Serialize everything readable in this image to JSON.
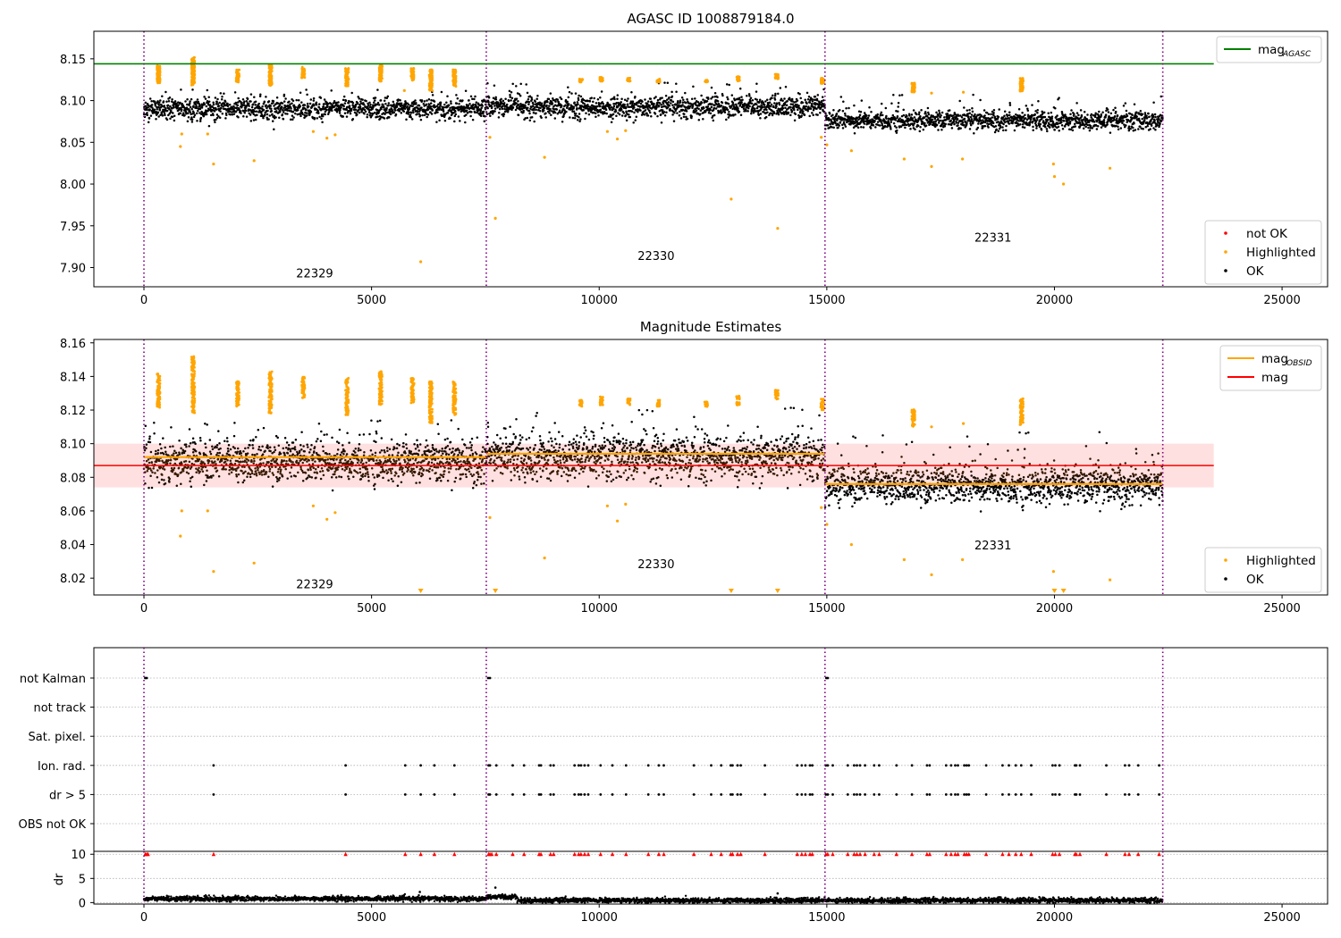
{
  "colors": {
    "ok": "#000000",
    "highlighted": "#ffa500",
    "not_ok": "#ff0000",
    "mag_agasc": "#008000",
    "mag_obsid": "#ffa500",
    "mag": "#ff0000",
    "band": "#ffcccc",
    "obs_boundary": "#800080",
    "grid": "#b0b0b0"
  },
  "chart_data": [
    {
      "type": "scatter",
      "title": "AGASC ID 1008879184.0",
      "xlim": [
        -1100,
        26000
      ],
      "ylim": [
        7.877,
        8.183
      ],
      "xticks": [
        0,
        5000,
        10000,
        15000,
        20000,
        25000
      ],
      "xticklabels": [
        "0",
        "5000",
        "10000",
        "15000",
        "20000",
        "25000"
      ],
      "yticks": [
        7.9,
        7.95,
        8.0,
        8.05,
        8.1,
        8.15
      ],
      "yticklabels": [
        "7.90",
        "7.95",
        "8.00",
        "8.05",
        "8.10",
        "8.15"
      ],
      "obs_boundaries": [
        0,
        7520,
        14960,
        22380
      ],
      "obs_labels": [
        {
          "text": "22329",
          "x": 3750,
          "y": 7.888
        },
        {
          "text": "22330",
          "x": 11250,
          "y": 7.909
        },
        {
          "text": "22331",
          "x": 18650,
          "y": 7.931
        }
      ],
      "lines": [
        {
          "name": "mag",
          "sub": "AGASC",
          "y": 8.144,
          "x": [
            -1100,
            23500
          ],
          "color": "#008000"
        }
      ],
      "series": [
        {
          "name": "not OK",
          "color": "#ff0000",
          "points": []
        },
        {
          "name": "Highlighted",
          "color": "#ffa500",
          "points": [
            [
              800,
              8.045
            ],
            [
              830,
              8.06
            ],
            [
              1530,
              8.024
            ],
            [
              1400,
              8.06
            ],
            [
              2420,
              8.028
            ],
            [
              3720,
              8.063
            ],
            [
              4020,
              8.055
            ],
            [
              4200,
              8.059
            ],
            [
              5720,
              8.112
            ],
            [
              6080,
              7.907
            ],
            [
              7600,
              8.056
            ],
            [
              7720,
              7.959
            ],
            [
              8800,
              8.032
            ],
            [
              10180,
              8.063
            ],
            [
              10400,
              8.054
            ],
            [
              10580,
              8.064
            ],
            [
              12900,
              7.982
            ],
            [
              13920,
              7.947
            ],
            [
              14880,
              8.056
            ],
            [
              15000,
              8.047
            ],
            [
              15540,
              8.04
            ],
            [
              16700,
              8.03
            ],
            [
              17300,
              8.021
            ],
            [
              17980,
              8.03
            ],
            [
              19980,
              8.024
            ],
            [
              20000,
              8.009
            ],
            [
              20200,
              8.0
            ],
            [
              21220,
              8.019
            ],
            [
              17300,
              8.109
            ],
            [
              18000,
              8.11
            ]
          ]
        },
        {
          "name": "OK",
          "color": "#000000",
          "points": []
        }
      ],
      "ok_segments": [
        {
          "x0": 0,
          "x1": 7520,
          "center": 8.09,
          "spread": 0.011,
          "max": 8.114
        },
        {
          "x0": 7520,
          "x1": 14960,
          "center": 8.092,
          "spread": 0.012,
          "max": 8.122
        },
        {
          "x0": 14960,
          "x1": 22380,
          "center": 8.076,
          "spread": 0.01,
          "max": 8.107
        }
      ],
      "highlight_clusters": [
        {
          "x": 320,
          "lo": 8.121,
          "hi": 8.142
        },
        {
          "x": 1080,
          "lo": 8.118,
          "hi": 8.152
        },
        {
          "x": 2060,
          "lo": 8.122,
          "hi": 8.137
        },
        {
          "x": 2780,
          "lo": 8.118,
          "hi": 8.143
        },
        {
          "x": 3500,
          "lo": 8.127,
          "hi": 8.14
        },
        {
          "x": 4460,
          "lo": 8.117,
          "hi": 8.139
        },
        {
          "x": 5200,
          "lo": 8.123,
          "hi": 8.143
        },
        {
          "x": 5900,
          "lo": 8.124,
          "hi": 8.139
        },
        {
          "x": 6300,
          "lo": 8.112,
          "hi": 8.137
        },
        {
          "x": 6820,
          "lo": 8.117,
          "hi": 8.137
        },
        {
          "x": 9600,
          "lo": 8.122,
          "hi": 8.126
        },
        {
          "x": 10050,
          "lo": 8.123,
          "hi": 8.128
        },
        {
          "x": 10650,
          "lo": 8.123,
          "hi": 8.127
        },
        {
          "x": 11300,
          "lo": 8.122,
          "hi": 8.126
        },
        {
          "x": 12350,
          "lo": 8.122,
          "hi": 8.125
        },
        {
          "x": 13050,
          "lo": 8.123,
          "hi": 8.129
        },
        {
          "x": 13900,
          "lo": 8.126,
          "hi": 8.132
        },
        {
          "x": 14900,
          "lo": 8.12,
          "hi": 8.127
        },
        {
          "x": 16900,
          "lo": 8.11,
          "hi": 8.121
        },
        {
          "x": 19280,
          "lo": 8.111,
          "hi": 8.127
        }
      ],
      "legends": [
        {
          "placement": "upper right",
          "entries": [
            {
              "label": "mag",
              "sub": "AGASC",
              "kind": "line",
              "color": "#008000"
            }
          ]
        },
        {
          "placement": "lower right",
          "entries": [
            {
              "label": "not OK",
              "kind": "dot",
              "color": "#ff0000"
            },
            {
              "label": "Highlighted",
              "kind": "dot",
              "color": "#ffa500"
            },
            {
              "label": "OK",
              "kind": "dot",
              "color": "#000000"
            }
          ]
        }
      ]
    },
    {
      "type": "scatter",
      "title": "Magnitude Estimates",
      "xlim": [
        -1100,
        26000
      ],
      "ylim": [
        8.01,
        8.162
      ],
      "xticks": [
        0,
        5000,
        10000,
        15000,
        20000,
        25000
      ],
      "xticklabels": [
        "0",
        "5000",
        "10000",
        "15000",
        "20000",
        "25000"
      ],
      "yticks": [
        8.02,
        8.04,
        8.06,
        8.08,
        8.1,
        8.12,
        8.14,
        8.16
      ],
      "yticklabels": [
        "8.02",
        "8.04",
        "8.06",
        "8.08",
        "8.10",
        "8.12",
        "8.14",
        "8.16"
      ],
      "obs_boundaries": [
        0,
        7520,
        14960,
        22380
      ],
      "obs_labels": [
        {
          "text": "22329",
          "x": 3750,
          "y": 8.014
        },
        {
          "text": "22330",
          "x": 11250,
          "y": 8.026
        },
        {
          "text": "22331",
          "x": 18650,
          "y": 8.037
        }
      ],
      "band": {
        "x0": -1100,
        "x1": 23500,
        "lo": 8.074,
        "hi": 8.1
      },
      "lines": [
        {
          "name": "mag",
          "y": 8.087,
          "x": [
            -1100,
            23500
          ],
          "color": "#ff0000"
        }
      ],
      "obsid_means": [
        {
          "x0": 0,
          "x1": 7520,
          "y": 8.092
        },
        {
          "x0": 7520,
          "x1": 14960,
          "y": 8.094
        },
        {
          "x0": 14960,
          "x1": 22380,
          "y": 8.076
        }
      ],
      "series": [
        {
          "name": "Highlighted",
          "color": "#ffa500",
          "points": [
            [
              800,
              8.045
            ],
            [
              830,
              8.06
            ],
            [
              1530,
              8.024
            ],
            [
              1400,
              8.06
            ],
            [
              2420,
              8.029
            ],
            [
              3720,
              8.063
            ],
            [
              4020,
              8.055
            ],
            [
              4200,
              8.059
            ],
            [
              7600,
              8.056
            ],
            [
              8800,
              8.032
            ],
            [
              10180,
              8.063
            ],
            [
              10400,
              8.054
            ],
            [
              10580,
              8.064
            ],
            [
              14880,
              8.062
            ],
            [
              15000,
              8.052
            ],
            [
              15540,
              8.04
            ],
            [
              16700,
              8.031
            ],
            [
              17300,
              8.022
            ],
            [
              17980,
              8.031
            ],
            [
              19980,
              8.024
            ],
            [
              21220,
              8.019
            ],
            [
              17300,
              8.11
            ],
            [
              18000,
              8.112
            ]
          ]
        },
        {
          "name": "OK",
          "color": "#000000",
          "points": []
        }
      ],
      "clipped_markers_x": [
        6080,
        7720,
        12900,
        13920,
        20000,
        20200
      ],
      "ok_segments": [
        {
          "x0": 0,
          "x1": 7520,
          "center": 8.089,
          "spread": 0.011,
          "max": 8.114
        },
        {
          "x0": 7520,
          "x1": 14960,
          "center": 8.092,
          "spread": 0.012,
          "max": 8.122
        },
        {
          "x0": 14960,
          "x1": 22380,
          "center": 8.075,
          "spread": 0.01,
          "max": 8.107
        }
      ],
      "highlight_clusters": [
        {
          "x": 320,
          "lo": 8.121,
          "hi": 8.142
        },
        {
          "x": 1080,
          "lo": 8.118,
          "hi": 8.152
        },
        {
          "x": 2060,
          "lo": 8.122,
          "hi": 8.137
        },
        {
          "x": 2780,
          "lo": 8.118,
          "hi": 8.143
        },
        {
          "x": 3500,
          "lo": 8.127,
          "hi": 8.14
        },
        {
          "x": 4460,
          "lo": 8.117,
          "hi": 8.139
        },
        {
          "x": 5200,
          "lo": 8.123,
          "hi": 8.143
        },
        {
          "x": 5900,
          "lo": 8.124,
          "hi": 8.139
        },
        {
          "x": 6300,
          "lo": 8.112,
          "hi": 8.137
        },
        {
          "x": 6820,
          "lo": 8.117,
          "hi": 8.137
        },
        {
          "x": 9600,
          "lo": 8.122,
          "hi": 8.126
        },
        {
          "x": 10050,
          "lo": 8.123,
          "hi": 8.128
        },
        {
          "x": 10650,
          "lo": 8.123,
          "hi": 8.127
        },
        {
          "x": 11300,
          "lo": 8.122,
          "hi": 8.126
        },
        {
          "x": 12350,
          "lo": 8.122,
          "hi": 8.125
        },
        {
          "x": 13050,
          "lo": 8.123,
          "hi": 8.129
        },
        {
          "x": 13900,
          "lo": 8.126,
          "hi": 8.132
        },
        {
          "x": 14900,
          "lo": 8.12,
          "hi": 8.127
        },
        {
          "x": 16900,
          "lo": 8.11,
          "hi": 8.121
        },
        {
          "x": 19280,
          "lo": 8.111,
          "hi": 8.127
        }
      ],
      "legends": [
        {
          "placement": "upper right",
          "entries": [
            {
              "label": "mag",
              "sub": "OBSID",
              "kind": "line",
              "color": "#ffa500"
            },
            {
              "label": "mag",
              "kind": "line",
              "color": "#ff0000"
            }
          ]
        },
        {
          "placement": "lower right",
          "entries": [
            {
              "label": "Highlighted",
              "kind": "dot",
              "color": "#ffa500"
            },
            {
              "label": "OK",
              "kind": "dot",
              "color": "#000000"
            }
          ]
        }
      ]
    },
    {
      "type": "scatter",
      "xlim": [
        -1100,
        26000
      ],
      "xticks": [
        0,
        5000,
        10000,
        15000,
        20000,
        25000
      ],
      "xticklabels": [
        "0",
        "5000",
        "10000",
        "15000",
        "20000",
        "25000"
      ],
      "obs_boundaries": [
        0,
        7520,
        14960,
        22380
      ],
      "flag_rows": [
        "not Kalman",
        "not track",
        "Sat. pixel.",
        "Ion. rad.",
        "dr > 5",
        "OBS not OK"
      ],
      "flags": {
        "not Kalman": [
          30,
          60,
          7560,
          7600,
          14990,
          15020
        ],
        "not track": [],
        "Sat. pixel.": [],
        "Ion. rad.": [
          1530,
          4430,
          5740,
          6080,
          6380,
          6820,
          7570,
          7600,
          7740,
          8100,
          8350,
          8680,
          8720,
          8930,
          9000,
          9460,
          9550,
          9600,
          9680,
          9760,
          10030,
          10290,
          10590,
          11080,
          11310,
          11420,
          12080,
          12460,
          12680,
          12890,
          12930,
          13040,
          13110,
          13640,
          14350,
          14450,
          14530,
          14630,
          14680,
          14980,
          15020,
          15130,
          15460,
          15600,
          15660,
          15730,
          15840,
          16040,
          16150,
          16530,
          16870,
          17200,
          17260,
          17620,
          17730,
          17820,
          17880,
          18020,
          18070,
          18120,
          18500,
          18860,
          19000,
          19150,
          19270,
          19490,
          19960,
          20020,
          20110,
          20450,
          20480,
          20560,
          21140,
          21550,
          21640,
          21840,
          22300
        ],
        "dr > 5": [
          1530,
          4430,
          5740,
          6080,
          6380,
          6820,
          7570,
          7600,
          7740,
          8100,
          8350,
          8680,
          8720,
          8930,
          9000,
          9460,
          9550,
          9600,
          9680,
          9760,
          10030,
          10290,
          10590,
          11080,
          11310,
          11420,
          12080,
          12460,
          12680,
          12890,
          12930,
          13040,
          13110,
          13640,
          14350,
          14450,
          14530,
          14630,
          14680,
          14980,
          15020,
          15130,
          15460,
          15600,
          15660,
          15730,
          15840,
          16040,
          16150,
          16530,
          16870,
          17200,
          17260,
          17620,
          17730,
          17820,
          17880,
          18020,
          18070,
          18120,
          18500,
          18860,
          19000,
          19150,
          19270,
          19490,
          19960,
          20020,
          20110,
          20450,
          20480,
          20560,
          21140,
          21550,
          21640,
          21840,
          22300
        ],
        "OBS not OK": []
      },
      "dr": {
        "ylabel": "dr",
        "ylim": [
          -0.3,
          10.6
        ],
        "yticks": [
          0,
          5,
          10
        ],
        "yticklabels": [
          "0",
          "5",
          "10"
        ],
        "baseline_segments": [
          {
            "x0": 0,
            "x1": 7520,
            "level": 0.8
          },
          {
            "x0": 7520,
            "x1": 8200,
            "level": 1.2
          },
          {
            "x0": 8200,
            "x1": 22380,
            "level": 0.45
          }
        ],
        "outliers": [
          [
            6060,
            2.2
          ],
          [
            7720,
            3.1
          ],
          [
            13920,
            1.9
          ]
        ],
        "clipped_x": [
          30,
          60,
          90,
          1530,
          4430,
          5740,
          6080,
          6380,
          6820,
          7570,
          7600,
          7640,
          7740,
          8100,
          8350,
          8680,
          8720,
          8930,
          9000,
          9460,
          9550,
          9600,
          9680,
          9760,
          10030,
          10290,
          10590,
          11080,
          11310,
          11420,
          12080,
          12460,
          12680,
          12890,
          12930,
          13040,
          13110,
          13640,
          14350,
          14450,
          14530,
          14630,
          14680,
          14980,
          15020,
          15130,
          15460,
          15600,
          15660,
          15730,
          15840,
          16040,
          16150,
          16530,
          16870,
          17200,
          17260,
          17620,
          17730,
          17820,
          17880,
          18020,
          18070,
          18120,
          18500,
          18860,
          19000,
          19150,
          19270,
          19490,
          19960,
          20020,
          20110,
          20450,
          20480,
          20560,
          21140,
          21550,
          21640,
          21840,
          22300
        ]
      }
    }
  ]
}
